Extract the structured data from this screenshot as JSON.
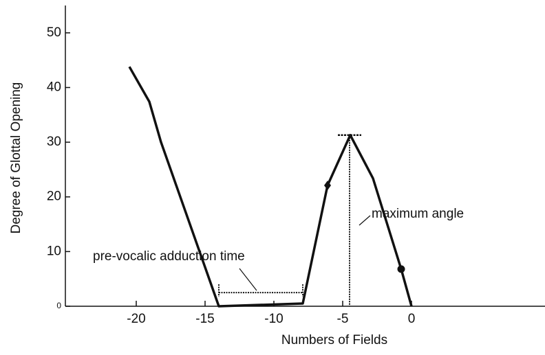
{
  "chart_data": {
    "type": "line",
    "xlabel": "Numbers of Fields",
    "ylabel": "Degree of Glottal Opening",
    "x": [
      -20.5,
      -19.05,
      -18.2,
      -14,
      -7.9,
      -6.1,
      -4.45,
      -2.8,
      -0.75,
      0
    ],
    "series": [
      {
        "color": "#111111",
        "values": [
          43.8,
          37.4,
          30,
          0,
          0.5,
          22.1,
          31.3,
          23.4,
          6.8,
          0
        ]
      }
    ],
    "markers": [
      {
        "index": 5,
        "shape": "diamond"
      },
      {
        "index": 8,
        "shape": "circle"
      }
    ],
    "xlim": [
      -25.15,
      9.7
    ],
    "ylim": [
      0,
      55
    ],
    "xticks": [
      -20,
      -15,
      -10,
      -5,
      0
    ],
    "yticks": [
      0,
      10,
      20,
      30,
      40,
      50
    ],
    "annotations": [
      {
        "text": "pre-vocalic adduction time",
        "x": [
          -14,
          -7.9
        ],
        "y": 2.5
      },
      {
        "text": "maximum angle",
        "x": -4.5,
        "y": 31.3
      }
    ]
  }
}
